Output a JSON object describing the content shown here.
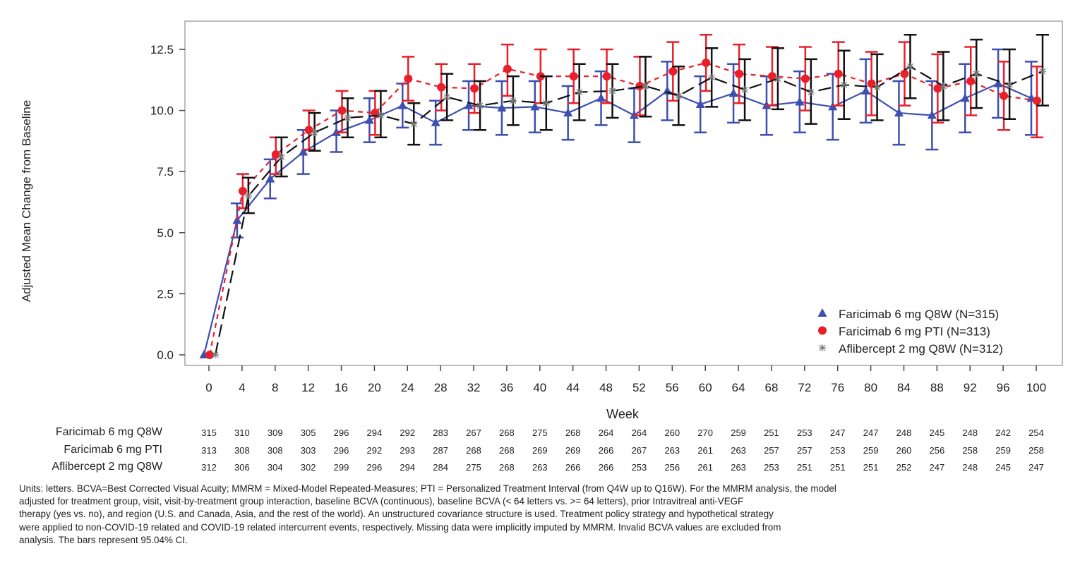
{
  "chart_data": {
    "type": "line",
    "title": "",
    "xlabel": "Week",
    "ylabel": "Adjusted Mean Change from Baseline",
    "xlim": [
      0,
      100
    ],
    "ylim": [
      0,
      12.5
    ],
    "x": [
      0,
      4,
      8,
      12,
      16,
      20,
      24,
      28,
      32,
      36,
      40,
      44,
      48,
      52,
      56,
      60,
      64,
      68,
      72,
      76,
      80,
      84,
      88,
      92,
      96,
      100
    ],
    "x_ticks": [
      "0",
      "4",
      "8",
      "12",
      "16",
      "20",
      "24",
      "28",
      "32",
      "36",
      "40",
      "44",
      "48",
      "52",
      "56",
      "60",
      "64",
      "68",
      "72",
      "76",
      "80",
      "84",
      "88",
      "92",
      "96",
      "100"
    ],
    "y_ticks": [
      "0.0",
      "2.5",
      "5.0",
      "7.5",
      "10.0",
      "12.5"
    ],
    "y_tick_values": [
      0,
      2.5,
      5,
      7.5,
      10,
      12.5
    ],
    "grid": false,
    "legend_position": "bottom-right",
    "series": [
      {
        "name": "Faricimab 6 mg Q8W (N=315)",
        "color": "#3d4fb0",
        "marker": "triangle",
        "line": "solid",
        "values": [
          0,
          5.5,
          7.2,
          8.3,
          9.1,
          9.6,
          10.2,
          9.5,
          10.2,
          10.1,
          10.15,
          9.9,
          10.5,
          9.8,
          10.8,
          10.25,
          10.7,
          10.2,
          10.35,
          10.15,
          10.8,
          9.9,
          9.8,
          10.5,
          11.1,
          10.5
        ],
        "ci_lower": [
          0,
          4.8,
          6.4,
          7.4,
          8.3,
          8.7,
          9.3,
          8.6,
          9.2,
          9.0,
          9.1,
          8.8,
          9.4,
          8.7,
          9.6,
          9.1,
          9.5,
          9.0,
          9.1,
          8.8,
          9.5,
          8.6,
          8.4,
          9.1,
          9.7,
          9.0
        ],
        "ci_upper": [
          0,
          6.2,
          8.0,
          9.2,
          10.0,
          10.5,
          11.1,
          10.4,
          11.2,
          11.2,
          11.2,
          11.0,
          11.6,
          10.9,
          12.0,
          11.4,
          11.9,
          11.4,
          11.6,
          11.5,
          12.1,
          11.2,
          11.2,
          11.9,
          12.5,
          12.0
        ]
      },
      {
        "name": "Faricimab 6 mg PTI (N=313)",
        "color": "#e8202a",
        "marker": "circle",
        "line": "dashed",
        "values": [
          0,
          6.7,
          8.2,
          9.2,
          10.0,
          9.9,
          11.3,
          10.95,
          10.9,
          11.7,
          11.4,
          11.4,
          11.4,
          11.0,
          11.6,
          11.95,
          11.5,
          11.4,
          11.3,
          11.5,
          11.1,
          11.5,
          10.9,
          11.2,
          10.6,
          10.4
        ],
        "ci_lower": [
          0,
          6.0,
          7.4,
          8.4,
          9.1,
          9.0,
          10.4,
          10.0,
          9.9,
          10.6,
          10.3,
          10.3,
          10.3,
          9.8,
          10.4,
          10.8,
          10.3,
          10.2,
          10.0,
          10.2,
          9.8,
          10.2,
          9.5,
          9.8,
          9.2,
          8.9
        ],
        "ci_upper": [
          0,
          7.4,
          8.9,
          10.0,
          10.8,
          10.8,
          12.2,
          11.9,
          11.9,
          12.7,
          12.5,
          12.5,
          12.5,
          12.2,
          12.8,
          13.1,
          12.7,
          12.6,
          12.6,
          12.8,
          12.4,
          12.8,
          12.3,
          12.6,
          12.0,
          11.8
        ]
      },
      {
        "name": "Aflibercept 2 mg Q8W (N=312)",
        "color": "#111111",
        "marker": "asterisk",
        "line": "longdash",
        "values": [
          0,
          6.5,
          8.1,
          9.1,
          9.7,
          9.8,
          9.45,
          10.55,
          10.2,
          10.4,
          10.3,
          10.75,
          10.8,
          11.0,
          10.6,
          11.35,
          10.85,
          11.3,
          10.75,
          11.05,
          10.95,
          11.8,
          11.0,
          11.5,
          11.05,
          11.6
        ],
        "ci_lower": [
          0,
          5.8,
          7.3,
          8.35,
          8.9,
          8.9,
          8.6,
          9.6,
          9.2,
          9.4,
          9.2,
          9.6,
          9.7,
          9.75,
          9.4,
          10.15,
          9.6,
          10.05,
          9.45,
          9.65,
          9.6,
          10.5,
          9.6,
          10.1,
          9.65,
          10.2
        ],
        "ci_upper": [
          0,
          7.25,
          8.9,
          9.9,
          10.5,
          10.8,
          10.3,
          11.5,
          11.2,
          11.4,
          11.4,
          11.9,
          11.9,
          12.2,
          11.8,
          12.55,
          12.1,
          12.55,
          12.1,
          12.45,
          12.3,
          13.1,
          12.4,
          12.9,
          12.5,
          13.1
        ]
      }
    ]
  },
  "at_risk": [
    {
      "label": "Faricimab 6 mg Q8W",
      "counts": [
        "315",
        "310",
        "309",
        "305",
        "296",
        "294",
        "292",
        "283",
        "267",
        "268",
        "275",
        "268",
        "264",
        "264",
        "260",
        "270",
        "259",
        "251",
        "253",
        "247",
        "247",
        "248",
        "245",
        "248",
        "242",
        "254"
      ]
    },
    {
      "label": "Faricimab 6 mg PTI",
      "counts": [
        "313",
        "308",
        "308",
        "303",
        "296",
        "292",
        "293",
        "287",
        "268",
        "268",
        "269",
        "269",
        "266",
        "267",
        "263",
        "261",
        "263",
        "257",
        "257",
        "253",
        "259",
        "260",
        "256",
        "258",
        "259",
        "258"
      ]
    },
    {
      "label": "Aflibercept 2 mg Q8W",
      "counts": [
        "312",
        "306",
        "304",
        "302",
        "299",
        "296",
        "294",
        "284",
        "275",
        "268",
        "263",
        "266",
        "266",
        "253",
        "256",
        "261",
        "263",
        "253",
        "251",
        "251",
        "251",
        "252",
        "247",
        "248",
        "245",
        "247"
      ]
    }
  ],
  "footnote": [
    "Units: letters. BCVA=Best Corrected Visual Acuity; MMRM = Mixed-Model Repeated-Measures; PTI = Personalized Treatment Interval (from Q4W up to Q16W). For the MMRM analysis, the model",
    "adjusted for treatment group, visit, visit-by-treatment group interaction, baseline BCVA (continuous), baseline BCVA (< 64 letters vs. >= 64 letters), prior Intravitreal anti-VEGF",
    "therapy (yes vs. no), and region (U.S. and Canada, Asia, and the rest of the world). An unstructured covariance structure is used. Treatment policy strategy and hypothetical strategy",
    "were applied to non-COVID-19 related and COVID-19 related intercurrent events, respectively. Missing data were implicitly imputed by MMRM. Invalid BCVA values are excluded from",
    "analysis. The bars represent 95.04% CI."
  ]
}
